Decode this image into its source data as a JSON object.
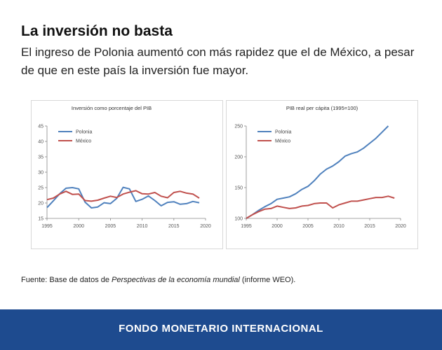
{
  "header": {
    "title": "La inversión no basta",
    "subtitle": "El ingreso de Polonia aumentó con más rapidez que el de México, a pesar de que en este país la inversión fue mayor."
  },
  "source": {
    "prefix": "Fuente: Base de datos de ",
    "italic": "Perspectivas de la economía mundial",
    "suffix": " (informe WEO)."
  },
  "footer": {
    "text": "FONDO MONETARIO INTERNACIONAL"
  },
  "colors": {
    "polonia": "#4f81bd",
    "mexico": "#c0504d",
    "footer_bg": "#1e4b8f"
  },
  "chart_data": [
    {
      "type": "line",
      "title": "Inversión como porcentaje del PIB",
      "xlim": [
        1995,
        2020
      ],
      "ylim": [
        15,
        45
      ],
      "xticks": [
        1995,
        2000,
        2005,
        2010,
        2015,
        2020
      ],
      "yticks": [
        15,
        20,
        25,
        30,
        35,
        40,
        45
      ],
      "legend_position": "top-left",
      "grid": false,
      "x": [
        1995,
        1996,
        1997,
        1998,
        1999,
        2000,
        2001,
        2002,
        2003,
        2004,
        2005,
        2006,
        2007,
        2008,
        2009,
        2010,
        2011,
        2012,
        2013,
        2014,
        2015,
        2016,
        2017,
        2018,
        2019
      ],
      "series": [
        {
          "name": "Polonia",
          "color": "#4f81bd",
          "values": [
            18.5,
            20.7,
            23.0,
            24.8,
            25.0,
            24.6,
            20.3,
            18.4,
            18.7,
            20.1,
            19.8,
            21.5,
            25.1,
            24.6,
            20.5,
            21.2,
            22.3,
            20.8,
            19.1,
            20.2,
            20.4,
            19.6,
            19.8,
            20.5,
            20.1
          ]
        },
        {
          "name": "México",
          "color": "#c0504d",
          "values": [
            21.1,
            21.6,
            22.9,
            23.8,
            22.8,
            22.9,
            20.8,
            20.6,
            20.9,
            21.6,
            22.2,
            21.8,
            22.9,
            23.5,
            24.0,
            23.0,
            22.9,
            23.4,
            22.2,
            21.7,
            23.4,
            23.8,
            23.2,
            22.9,
            21.6
          ]
        }
      ]
    },
    {
      "type": "line",
      "title": "PIB real per cápita (1995=100)",
      "xlim": [
        1995,
        2020
      ],
      "ylim": [
        100,
        250
      ],
      "xticks": [
        1995,
        2000,
        2005,
        2010,
        2015,
        2020
      ],
      "yticks": [
        100,
        150,
        200,
        250
      ],
      "legend_position": "top-left",
      "grid": false,
      "x": [
        1995,
        1996,
        1997,
        1998,
        1999,
        2000,
        2001,
        2002,
        2003,
        2004,
        2005,
        2006,
        2007,
        2008,
        2009,
        2010,
        2011,
        2012,
        2013,
        2014,
        2015,
        2016,
        2017,
        2018,
        2019
      ],
      "series": [
        {
          "name": "Polonia",
          "color": "#4f81bd",
          "values": [
            100,
            106,
            113,
            119,
            124,
            131,
            133,
            135,
            140,
            147,
            152,
            161,
            172,
            180,
            185,
            192,
            201,
            205,
            208,
            214,
            222,
            230,
            240,
            250,
            null
          ]
        },
        {
          "name": "México",
          "color": "#c0504d",
          "values": [
            100,
            106,
            111,
            115,
            116,
            120,
            118,
            116,
            117,
            120,
            121,
            124,
            125,
            125,
            117,
            122,
            125,
            128,
            128,
            130,
            132,
            134,
            134,
            136,
            133
          ]
        }
      ]
    }
  ]
}
